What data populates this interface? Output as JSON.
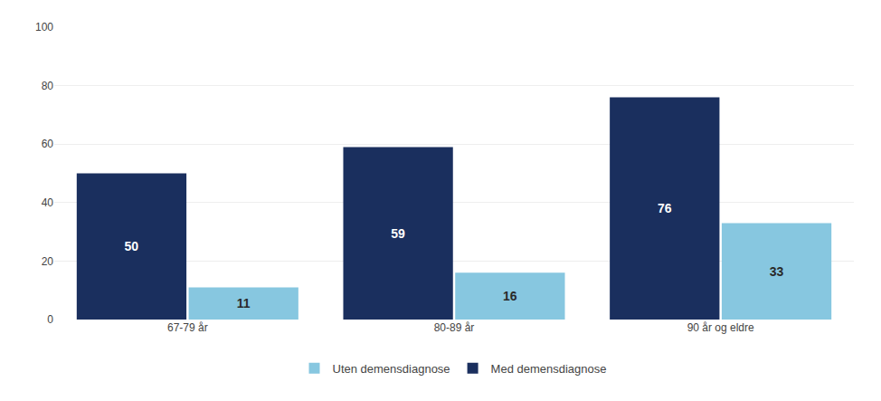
{
  "chart_data": {
    "type": "bar",
    "categories": [
      "67-79 år",
      "80-89 år",
      "90 år og eldre"
    ],
    "series": [
      {
        "name": "Med demensdiagnose",
        "color": "#1a2f5e",
        "values": [
          50,
          59,
          76
        ]
      },
      {
        "name": "Uten demensdiagnose",
        "color": "#87c7e0",
        "values": [
          11,
          16,
          33
        ]
      }
    ],
    "ylim": [
      0,
      100
    ],
    "yticks": [
      0,
      20,
      40,
      60,
      80,
      100
    ],
    "grid": true,
    "legend": "bottom",
    "data_labels": true
  }
}
